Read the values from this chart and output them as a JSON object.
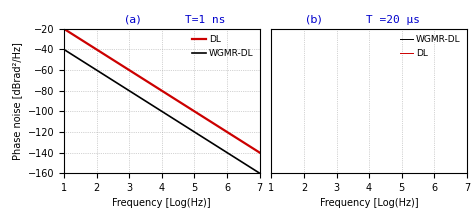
{
  "title_a": "T=1 ns",
  "title_b": "T =20 μs",
  "label_a": "(a)",
  "label_b": "(b)",
  "ylabel": "Phase noise [dBrad²/Hz]",
  "xlabel": "Frequency [Log(Hz)]",
  "ylim": [
    -160,
    -20
  ],
  "xlim": [
    1,
    7
  ],
  "yticks": [
    -160,
    -140,
    -120,
    -100,
    -80,
    -60,
    -40,
    -20
  ],
  "xticks": [
    1,
    2,
    3,
    4,
    5,
    6,
    7
  ],
  "color_DL": "#cc0000",
  "color_WGMR": "#000000",
  "title_color": "#0000cc",
  "background_color": "#ffffff",
  "grid_color": "#aaaaaa",
  "legend_DL": "DL",
  "legend_WGMR": "WGMR-DL",
  "T_ns": 1e-09,
  "T_us": 2e-05
}
